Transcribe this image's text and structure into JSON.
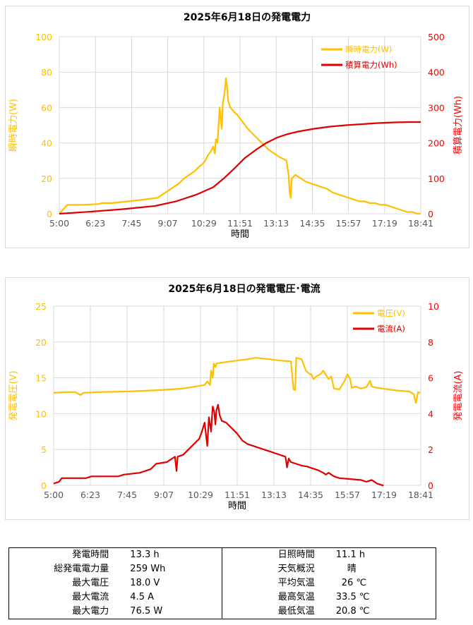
{
  "charts": {
    "power": {
      "title": "2025年6月18日の発電電力",
      "xlabel": "時間",
      "ylabel_left": "瞬時電力(W)",
      "ylabel_right": "積算電力(Wh)",
      "yticks_left": [
        "0",
        "20",
        "40",
        "60",
        "80",
        "100"
      ],
      "yticks_right": [
        "0",
        "100",
        "200",
        "300",
        "400",
        "500"
      ],
      "xticks": [
        "5:00",
        "6:23",
        "7:45",
        "9:07",
        "10:29",
        "11:51",
        "13:13",
        "14:35",
        "15:57",
        "17:19",
        "18:41"
      ],
      "legend": [
        "瞬時電力(W)",
        "積算電力(Wh)"
      ]
    },
    "voltage": {
      "title": "2025年6月18日の発電電圧･電流",
      "xlabel": "時間",
      "ylabel_left": "発電電圧(V)",
      "ylabel_right": "発電電流(A)",
      "yticks_left": [
        "0",
        "5",
        "10",
        "15",
        "20",
        "25"
      ],
      "yticks_right": [
        "0",
        "2",
        "4",
        "6",
        "8",
        "10"
      ],
      "xticks": [
        "5:00",
        "6:23",
        "7:45",
        "9:07",
        "10:29",
        "11:51",
        "13:13",
        "14:35",
        "15:57",
        "17:19",
        "18:41"
      ],
      "legend": [
        "電圧(V)",
        "電流(A)"
      ]
    }
  },
  "colors": {
    "orange": "#ffc000",
    "red": "#e00000",
    "right_axis": "#ff0000"
  },
  "chart_data": [
    {
      "type": "line",
      "title": "2025年6月18日の発電電力",
      "xlabel": "時間",
      "x_range": [
        "5:00",
        "18:41"
      ],
      "x_unit": "minutes since 5:00",
      "grid": true,
      "legend_position": "top-right",
      "series": [
        {
          "name": "瞬時電力(W)",
          "axis": "left",
          "ylim": [
            0,
            100
          ],
          "color": "#ffc000",
          "points": [
            [
              0,
              0
            ],
            [
              15,
              5
            ],
            [
              45,
              5
            ],
            [
              75,
              5.5
            ],
            [
              80,
              6
            ],
            [
              100,
              6
            ],
            [
              130,
              7
            ],
            [
              160,
              8
            ],
            [
              185,
              9
            ],
            [
              200,
              12
            ],
            [
              215,
              15
            ],
            [
              225,
              17
            ],
            [
              235,
              20
            ],
            [
              245,
              22
            ],
            [
              255,
              24
            ],
            [
              265,
              27
            ],
            [
              270,
              28
            ],
            [
              275,
              30
            ],
            [
              280,
              33
            ],
            [
              285,
              35
            ],
            [
              290,
              38
            ],
            [
              293,
              34
            ],
            [
              295,
              42
            ],
            [
              298,
              40
            ],
            [
              300,
              50
            ],
            [
              302,
              60
            ],
            [
              304,
              55
            ],
            [
              306,
              48
            ],
            [
              308,
              62
            ],
            [
              310,
              66
            ],
            [
              312,
              70
            ],
            [
              314,
              76.5
            ],
            [
              316,
              72
            ],
            [
              318,
              64
            ],
            [
              322,
              60
            ],
            [
              328,
              58
            ],
            [
              335,
              56
            ],
            [
              345,
              52
            ],
            [
              355,
              48
            ],
            [
              365,
              45
            ],
            [
              375,
              42
            ],
            [
              385,
              39
            ],
            [
              395,
              36
            ],
            [
              405,
              34
            ],
            [
              415,
              32
            ],
            [
              422,
              31
            ],
            [
              428,
              30
            ],
            [
              432,
              22
            ],
            [
              434,
              12
            ],
            [
              436,
              9
            ],
            [
              438,
              20
            ],
            [
              445,
              22
            ],
            [
              455,
              20
            ],
            [
              465,
              18
            ],
            [
              475,
              17
            ],
            [
              485,
              16
            ],
            [
              495,
              15
            ],
            [
              505,
              14
            ],
            [
              515,
              12
            ],
            [
              525,
              11
            ],
            [
              535,
              10
            ],
            [
              545,
              9
            ],
            [
              555,
              8
            ],
            [
              565,
              7
            ],
            [
              575,
              7
            ],
            [
              585,
              6
            ],
            [
              595,
              6
            ],
            [
              605,
              5
            ],
            [
              615,
              5
            ],
            [
              625,
              4
            ],
            [
              635,
              3
            ],
            [
              645,
              2
            ],
            [
              655,
              1
            ],
            [
              665,
              1
            ],
            [
              675,
              0
            ],
            [
              681,
              0
            ]
          ]
        },
        {
          "name": "積算電力(Wh)",
          "axis": "right",
          "ylim": [
            0,
            500
          ],
          "color": "#e00000",
          "points": [
            [
              0,
              0
            ],
            [
              60,
              6
            ],
            [
              120,
              13
            ],
            [
              180,
              22
            ],
            [
              220,
              35
            ],
            [
              260,
              55
            ],
            [
              290,
              75
            ],
            [
              310,
              100
            ],
            [
              330,
              128
            ],
            [
              350,
              158
            ],
            [
              370,
              180
            ],
            [
              390,
              200
            ],
            [
              410,
              215
            ],
            [
              430,
              225
            ],
            [
              450,
              232
            ],
            [
              480,
              240
            ],
            [
              510,
              246
            ],
            [
              540,
              250
            ],
            [
              570,
              253
            ],
            [
              600,
              256
            ],
            [
              630,
              258
            ],
            [
              660,
              259
            ],
            [
              681,
              259
            ]
          ]
        }
      ]
    },
    {
      "type": "line",
      "title": "2025年6月18日の発電電圧･電流",
      "xlabel": "時間",
      "x_range": [
        "5:00",
        "18:41"
      ],
      "x_unit": "minutes since 5:00",
      "grid": true,
      "legend_position": "top-right",
      "series": [
        {
          "name": "電圧(V)",
          "axis": "left",
          "ylim": [
            0,
            25
          ],
          "color": "#ffc000",
          "points": [
            [
              0,
              12.9
            ],
            [
              20,
              13
            ],
            [
              40,
              13
            ],
            [
              50,
              12.6
            ],
            [
              55,
              12.9
            ],
            [
              80,
              13
            ],
            [
              140,
              13.1
            ],
            [
              200,
              13.3
            ],
            [
              240,
              13.5
            ],
            [
              280,
              14
            ],
            [
              285,
              14.5
            ],
            [
              290,
              14
            ],
            [
              292,
              16
            ],
            [
              295,
              15
            ],
            [
              297,
              17
            ],
            [
              300,
              16.5
            ],
            [
              302,
              17
            ],
            [
              320,
              17.2
            ],
            [
              340,
              17.4
            ],
            [
              360,
              17.6
            ],
            [
              375,
              17.8
            ],
            [
              400,
              17.6
            ],
            [
              420,
              17.4
            ],
            [
              440,
              17.3
            ],
            [
              445,
              13.4
            ],
            [
              448,
              13.3
            ],
            [
              450,
              17.8
            ],
            [
              460,
              17.6
            ],
            [
              468,
              16
            ],
            [
              475,
              15.5
            ],
            [
              478,
              15.5
            ],
            [
              482,
              14.8
            ],
            [
              487,
              15.2
            ],
            [
              495,
              15.5
            ],
            [
              500,
              16
            ],
            [
              506,
              15.3
            ],
            [
              510,
              14.8
            ],
            [
              515,
              15.2
            ],
            [
              520,
              13.5
            ],
            [
              530,
              13.4
            ],
            [
              540,
              14.6
            ],
            [
              545,
              15.5
            ],
            [
              550,
              14.8
            ],
            [
              553,
              13.6
            ],
            [
              560,
              13.8
            ],
            [
              570,
              13.5
            ],
            [
              580,
              13.7
            ],
            [
              587,
              14.6
            ],
            [
              590,
              13.8
            ],
            [
              600,
              13.6
            ],
            [
              620,
              13.4
            ],
            [
              640,
              13.2
            ],
            [
              660,
              13.1
            ],
            [
              668,
              12.7
            ],
            [
              672,
              11.5
            ],
            [
              676,
              13
            ],
            [
              680,
              12.9
            ]
          ]
        },
        {
          "name": "電流(A)",
          "axis": "right",
          "ylim": [
            0,
            10
          ],
          "color": "#e00000",
          "points": [
            [
              0,
              0.1
            ],
            [
              10,
              0.2
            ],
            [
              15,
              0.4
            ],
            [
              60,
              0.4
            ],
            [
              70,
              0.5
            ],
            [
              120,
              0.5
            ],
            [
              130,
              0.6
            ],
            [
              160,
              0.7
            ],
            [
              180,
              0.9
            ],
            [
              190,
              1.2
            ],
            [
              210,
              1.3
            ],
            [
              220,
              1.5
            ],
            [
              225,
              1.6
            ],
            [
              228,
              0.8
            ],
            [
              230,
              1.6
            ],
            [
              240,
              1.7
            ],
            [
              250,
              2
            ],
            [
              260,
              2.3
            ],
            [
              270,
              2.6
            ],
            [
              275,
              3
            ],
            [
              280,
              3.5
            ],
            [
              285,
              2.2
            ],
            [
              288,
              3.8
            ],
            [
              292,
              3
            ],
            [
              295,
              4.4
            ],
            [
              298,
              4.1
            ],
            [
              300,
              3.4
            ],
            [
              302,
              4.2
            ],
            [
              305,
              4.5
            ],
            [
              308,
              3.9
            ],
            [
              312,
              3.6
            ],
            [
              320,
              3.5
            ],
            [
              330,
              3.2
            ],
            [
              340,
              2.9
            ],
            [
              350,
              2.5
            ],
            [
              360,
              2.3
            ],
            [
              370,
              2.2
            ],
            [
              380,
              2.1
            ],
            [
              390,
              2
            ],
            [
              400,
              1.9
            ],
            [
              410,
              1.8
            ],
            [
              420,
              1.7
            ],
            [
              430,
              1.6
            ],
            [
              433,
              1.0
            ],
            [
              436,
              1.5
            ],
            [
              440,
              1.3
            ],
            [
              450,
              1.2
            ],
            [
              460,
              1.1
            ],
            [
              470,
              1.05
            ],
            [
              480,
              0.95
            ],
            [
              490,
              0.85
            ],
            [
              500,
              0.7
            ],
            [
              505,
              0.6
            ],
            [
              510,
              0.7
            ],
            [
              520,
              0.5
            ],
            [
              530,
              0.4
            ],
            [
              550,
              0.35
            ],
            [
              570,
              0.3
            ],
            [
              580,
              0.2
            ],
            [
              590,
              0.3
            ],
            [
              595,
              0.2
            ],
            [
              600,
              0.1
            ],
            [
              605,
              0.05
            ],
            [
              610,
              0
            ],
            [
              612,
              0
            ]
          ]
        }
      ]
    }
  ],
  "summary": [
    [
      "発電時間",
      "13.3 h",
      "日照時間",
      "11.1 h"
    ],
    [
      "総発電電力量",
      "259 Wh",
      "天気概況",
      "晴"
    ],
    [
      "最大電圧",
      "18.0 V",
      "平均気温",
      "26 ℃"
    ],
    [
      "最大電流",
      "4.5 A",
      "最高気温",
      "33.5 ℃"
    ],
    [
      "最大電力",
      "76.5 W",
      "最低気温",
      "20.8 ℃"
    ]
  ]
}
